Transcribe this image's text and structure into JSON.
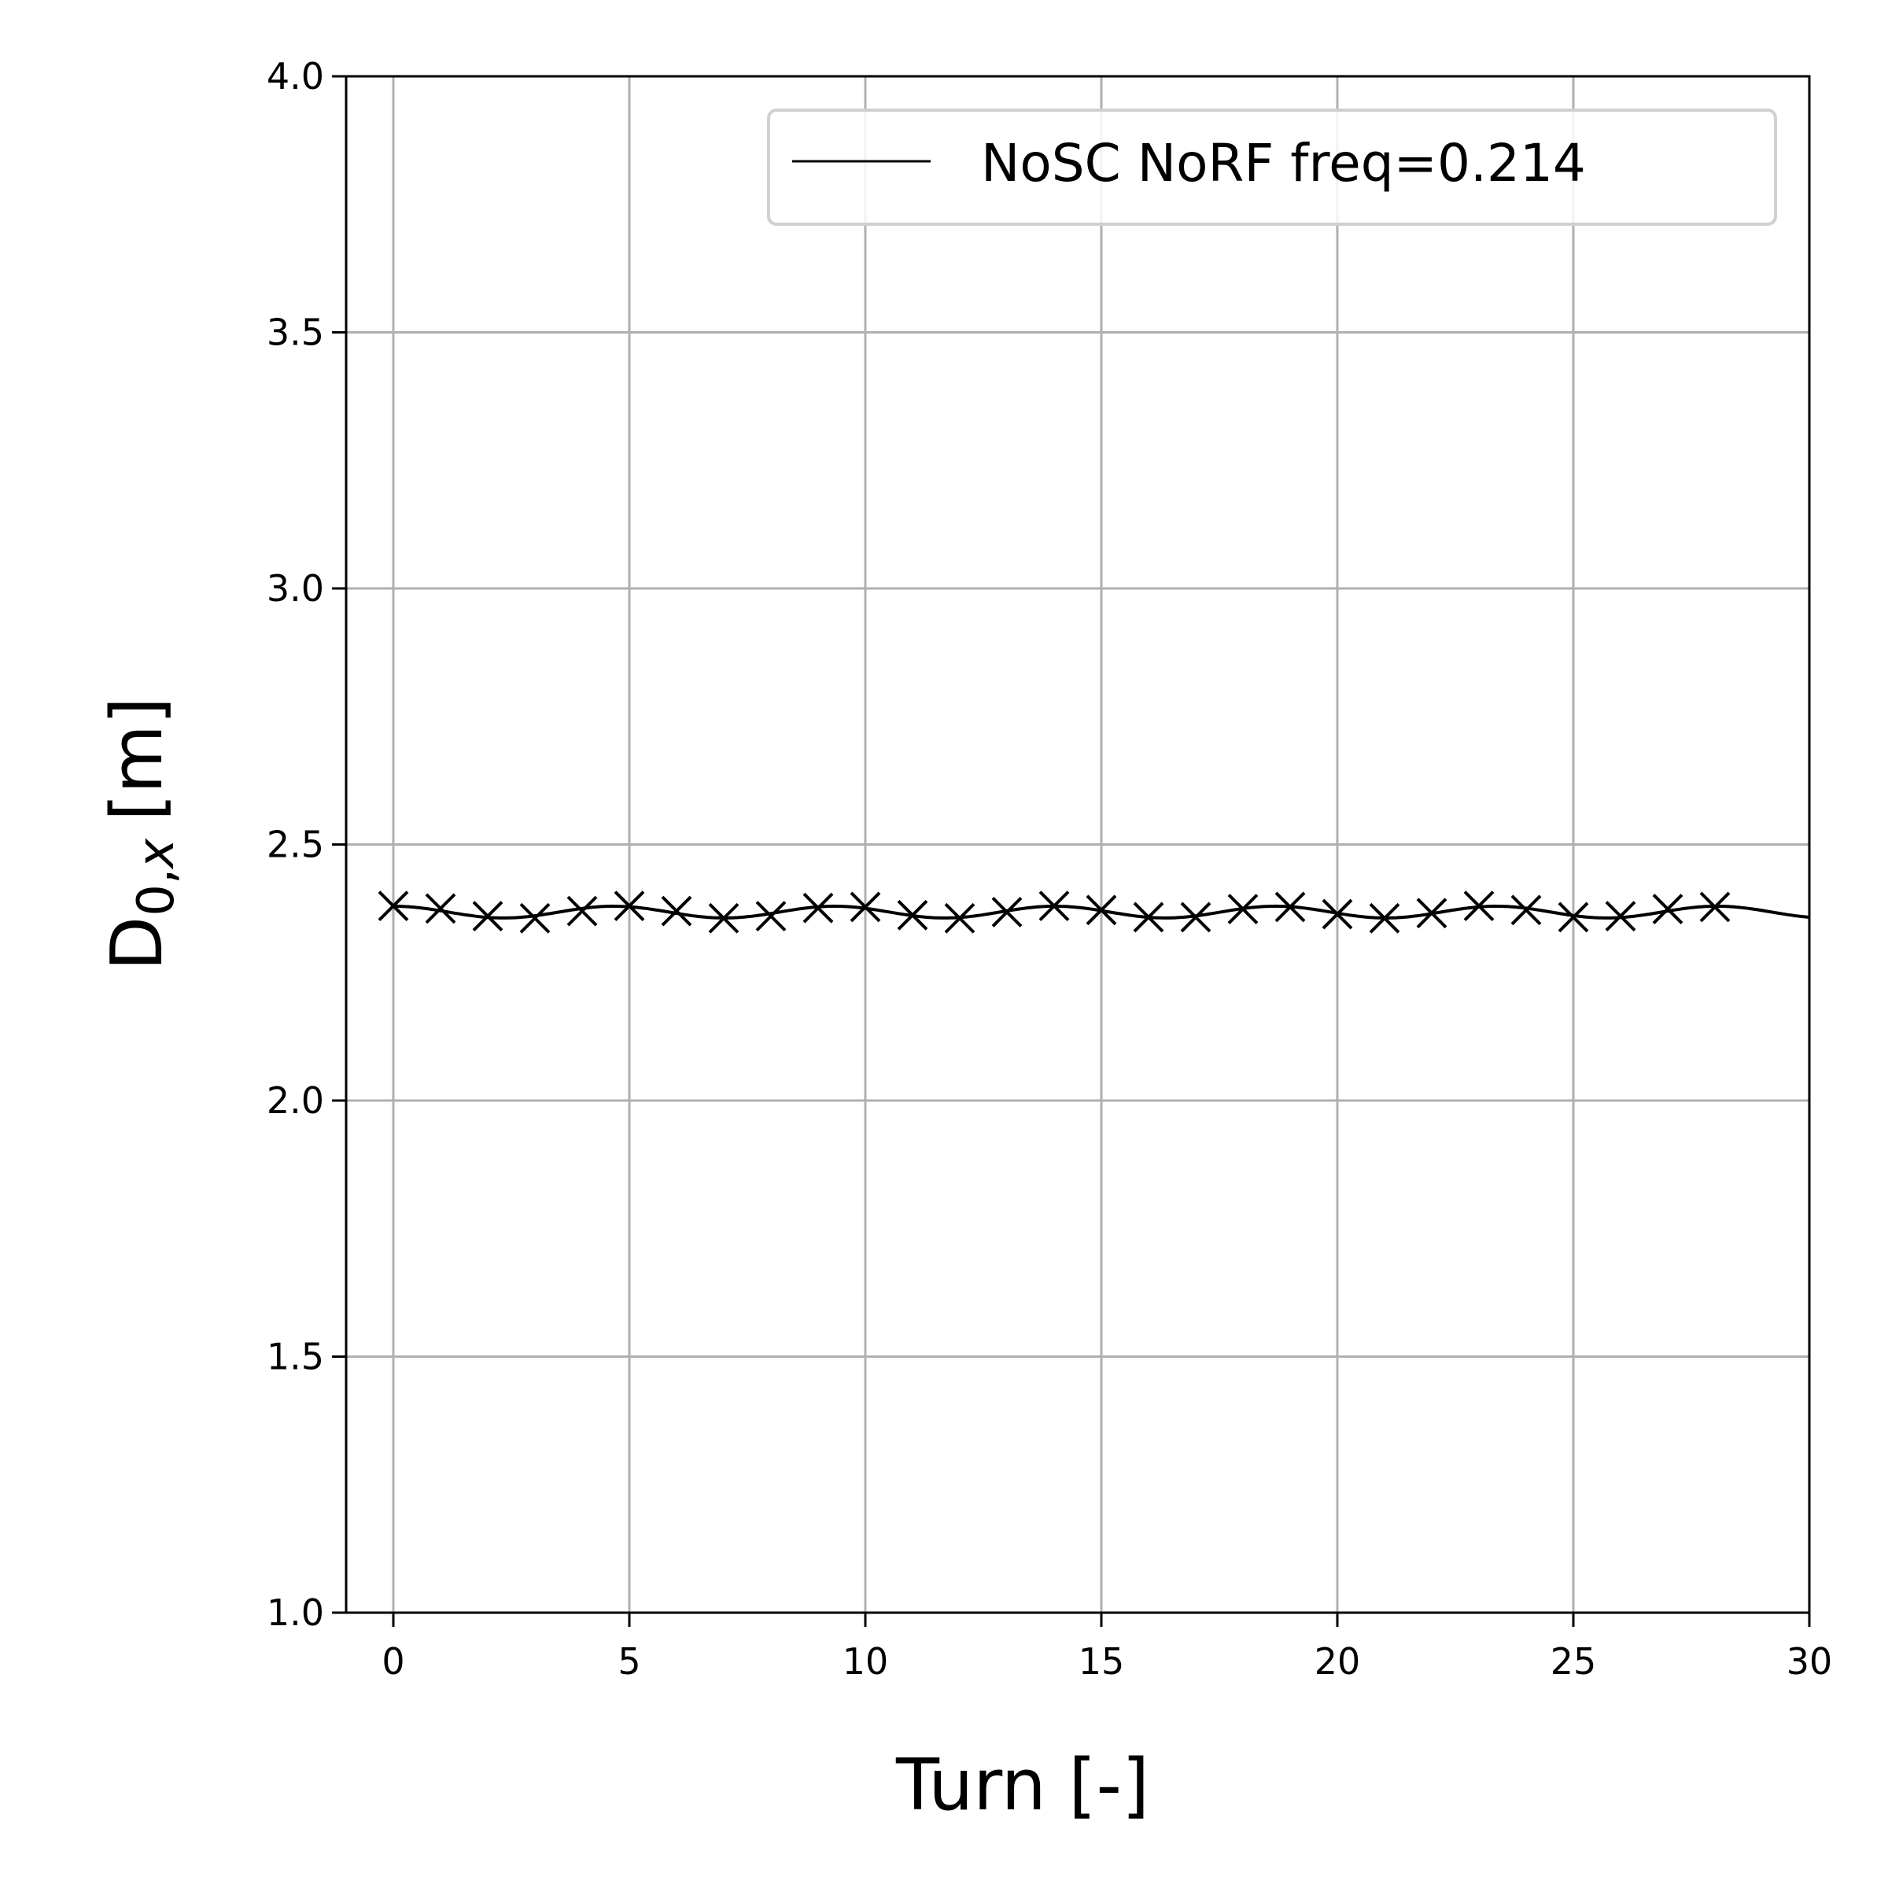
{
  "chart_data": {
    "type": "line",
    "xlabel": "Turn [-]",
    "ylabel_main": "D",
    "ylabel_sub": "0,",
    "ylabel_var": "x",
    "ylabel_unit": "[m]",
    "xlim": [
      -1,
      30
    ],
    "ylim": [
      1.0,
      4.0
    ],
    "x_ticks": [
      0,
      5,
      10,
      15,
      20,
      25,
      30
    ],
    "y_ticks": [
      1.0,
      1.5,
      2.0,
      2.5,
      3.0,
      3.5,
      4.0
    ],
    "x_tick_labels": [
      "0",
      "5",
      "10",
      "15",
      "20",
      "25",
      "30"
    ],
    "y_tick_labels": [
      "1.0",
      "1.5",
      "2.0",
      "2.5",
      "3.0",
      "3.5",
      "4.0"
    ],
    "grid": true,
    "legend_position": "top-right",
    "series": [
      {
        "name": "NoSC NoRF freq=0.214",
        "line_color": "#000000",
        "marker": "x",
        "marker_color": "#000000",
        "curve": {
          "mean": 2.368,
          "amplitude": 0.0115,
          "frequency": 0.214,
          "x_start": 0,
          "x_end": 30
        },
        "marker_x": [
          0,
          1,
          2,
          3,
          4,
          5,
          6,
          7,
          8,
          9,
          10,
          11,
          12,
          13,
          14,
          15,
          16,
          17,
          18,
          19,
          20,
          21,
          22,
          23,
          24,
          25,
          26,
          27,
          28
        ],
        "marker_y": [
          2.38,
          2.375,
          2.36,
          2.356,
          2.37,
          2.38,
          2.37,
          2.356,
          2.36,
          2.376,
          2.378,
          2.362,
          2.356,
          2.368,
          2.38,
          2.372,
          2.358,
          2.358,
          2.374,
          2.378,
          2.364,
          2.356,
          2.366,
          2.38,
          2.372,
          2.358,
          2.36,
          2.374,
          2.378
        ]
      }
    ]
  }
}
